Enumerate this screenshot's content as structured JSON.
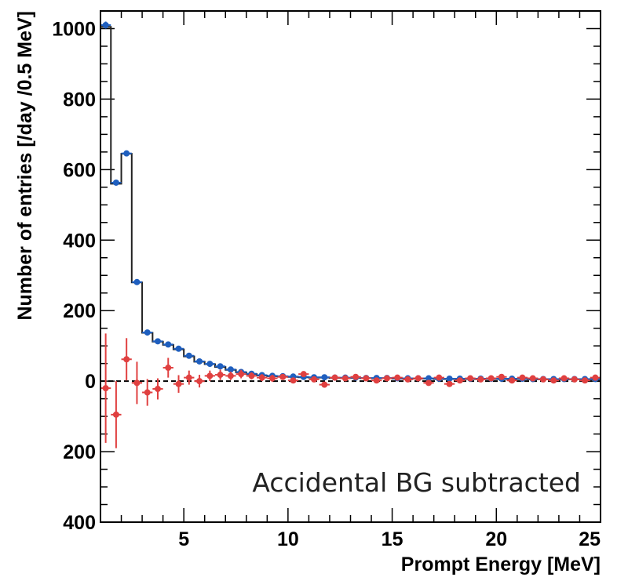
{
  "chart_data": {
    "type": "scatter",
    "title": "",
    "xlabel": "Prompt Energy [MeV]",
    "ylabel": "Number of entries [/day /0.5 MeV]",
    "xlim": [
      1,
      25
    ],
    "ylim": [
      -400,
      1050
    ],
    "x_ticks": [
      5,
      10,
      15,
      20,
      25
    ],
    "y_ticks": [
      {
        "value": 1000,
        "label": "1000"
      },
      {
        "value": 800,
        "label": "800"
      },
      {
        "value": 600,
        "label": "600"
      },
      {
        "value": 400,
        "label": "400"
      },
      {
        "value": 200,
        "label": "200"
      },
      {
        "value": 0,
        "label": "0"
      },
      {
        "value": -200,
        "label": "200"
      },
      {
        "value": -400,
        "label": "400"
      }
    ],
    "annotation": "Accidental BG subtracted",
    "reference_line": {
      "y": 0,
      "style": "dashed"
    },
    "bin_width": 0.5,
    "x": [
      1.25,
      1.75,
      2.25,
      2.75,
      3.25,
      3.75,
      4.25,
      4.75,
      5.25,
      5.75,
      6.25,
      6.75,
      7.25,
      7.75,
      8.25,
      8.75,
      9.25,
      9.75,
      10.25,
      10.75,
      11.25,
      11.75,
      12.25,
      12.75,
      13.25,
      13.75,
      14.25,
      14.75,
      15.25,
      15.75,
      16.25,
      16.75,
      17.25,
      17.75,
      18.25,
      18.75,
      19.25,
      19.75,
      20.25,
      20.75,
      21.25,
      21.75,
      22.25,
      22.75,
      23.25,
      23.75,
      24.25,
      24.75
    ],
    "series": [
      {
        "style": "histogram-step",
        "color": "#222222",
        "values": [
          1005,
          560,
          645,
          280,
          137,
          112,
          103,
          90,
          70,
          55,
          48,
          40,
          32,
          25,
          20,
          16,
          14,
          13,
          12,
          11,
          10,
          10,
          9,
          9,
          9,
          8,
          8,
          8,
          7,
          7,
          7,
          7,
          6,
          6,
          6,
          6,
          6,
          6,
          6,
          6,
          6,
          5,
          5,
          5,
          5,
          5,
          5,
          5
        ]
      },
      {
        "style": "points",
        "color": "#1f5fbf",
        "values": [
          1010,
          563,
          646,
          281,
          138,
          113,
          104,
          92,
          72,
          56,
          49,
          42,
          33,
          26,
          21,
          17,
          15,
          14,
          13,
          12,
          11,
          11,
          10,
          10,
          10,
          9,
          9,
          9,
          8,
          8,
          8,
          8,
          7,
          7,
          7,
          7,
          7,
          7,
          7,
          7,
          7,
          6,
          6,
          6,
          6,
          6,
          6,
          6
        ],
        "errors": [
          10,
          8,
          8,
          6,
          4,
          4,
          4,
          4,
          3,
          3,
          3,
          3,
          3,
          2,
          2,
          2,
          2,
          2,
          2,
          2,
          2,
          2,
          2,
          2,
          2,
          2,
          2,
          2,
          2,
          2,
          2,
          2,
          2,
          2,
          2,
          2,
          2,
          2,
          2,
          2,
          2,
          2,
          2,
          2,
          2,
          2,
          2,
          2
        ]
      },
      {
        "style": "points",
        "color": "#e04040",
        "values": [
          -20,
          -95,
          62,
          -5,
          -32,
          -22,
          38,
          -8,
          10,
          0,
          15,
          18,
          15,
          20,
          15,
          10,
          8,
          12,
          2,
          20,
          5,
          -10,
          10,
          8,
          12,
          8,
          2,
          8,
          10,
          5,
          8,
          -5,
          10,
          -8,
          2,
          8,
          5,
          8,
          12,
          2,
          10,
          8,
          5,
          2,
          8,
          5,
          2,
          10
        ],
        "errors": [
          155,
          95,
          60,
          60,
          38,
          30,
          28,
          25,
          20,
          18,
          15,
          15,
          12,
          12,
          10,
          10,
          10,
          8,
          8,
          8,
          8,
          8,
          7,
          7,
          7,
          7,
          7,
          7,
          7,
          7,
          7,
          7,
          7,
          7,
          7,
          7,
          7,
          7,
          7,
          7,
          7,
          7,
          7,
          7,
          7,
          7,
          7,
          7
        ]
      }
    ]
  }
}
